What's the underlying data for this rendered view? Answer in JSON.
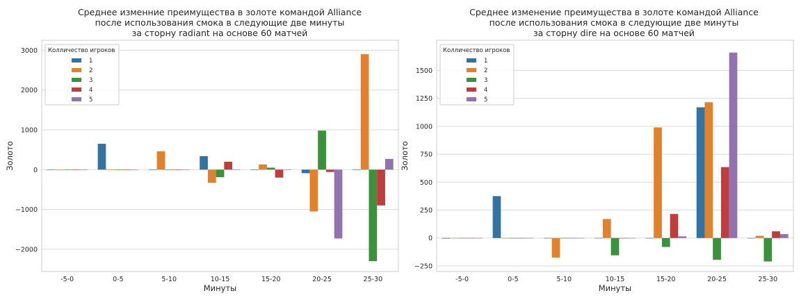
{
  "colors": {
    "series": [
      "#3274a1",
      "#e1812c",
      "#3a923a",
      "#c03d3e",
      "#9372b2"
    ],
    "grid": "#d9d9d9",
    "text": "#262626",
    "frame": "#cccccc"
  },
  "chart_data": [
    {
      "type": "bar",
      "title_lines": [
        "Среднее изменние преимущества в золоте командой Alliance",
        "после использования смока в следующие две минуты",
        "за сторну radiant на основе 60 матчей"
      ],
      "xlabel": "Минуты",
      "ylabel": "Золото",
      "categories": [
        "-5-0",
        "0-5",
        "5-10",
        "10-15",
        "15-20",
        "20-25",
        "25-30"
      ],
      "ylim": [
        -2560,
        3250
      ],
      "yticks": [
        -2000,
        -1000,
        0,
        1000,
        2000,
        3000
      ],
      "ytick_labels": [
        "−2000",
        "−1000",
        "0",
        "1000",
        "2000",
        "3000"
      ],
      "legend": {
        "title": "Колличество игроков",
        "location": "top-left"
      },
      "series": [
        {
          "name": "1",
          "values": [
            -5,
            650,
            0,
            340,
            0,
            -90,
            0
          ]
        },
        {
          "name": "2",
          "values": [
            0,
            0,
            460,
            -330,
            130,
            -1050,
            2900
          ]
        },
        {
          "name": "3",
          "values": [
            0,
            0,
            0,
            -190,
            50,
            980,
            -2300
          ]
        },
        {
          "name": "4",
          "values": [
            0,
            0,
            0,
            200,
            -200,
            -60,
            -900
          ]
        },
        {
          "name": "5",
          "values": [
            0,
            0,
            0,
            0,
            0,
            -1730,
            270
          ]
        }
      ]
    },
    {
      "type": "bar",
      "title_lines": [
        "Среднее изменение преимущества в золоте командой Alliance",
        "после использования смока в следующие две минуты",
        "за сторну dire на основе 60 матчей"
      ],
      "xlabel": "Минуты",
      "ylabel": "Золото",
      "categories": [
        "-5-0",
        "0-5",
        "5-10",
        "10-15",
        "15-20",
        "20-25",
        "25-30"
      ],
      "ylim": [
        -300,
        1770
      ],
      "yticks": [
        -250,
        0,
        250,
        500,
        750,
        1000,
        1250,
        1500
      ],
      "ytick_labels": [
        "−250",
        "0",
        "250",
        "500",
        "750",
        "1000",
        "1250",
        "1500"
      ],
      "legend": {
        "title": "Колличество игроков",
        "location": "top-left"
      },
      "series": [
        {
          "name": "1",
          "values": [
            -5,
            375,
            0,
            0,
            0,
            1170,
            0
          ]
        },
        {
          "name": "2",
          "values": [
            0,
            0,
            -175,
            170,
            990,
            1215,
            20
          ]
        },
        {
          "name": "3",
          "values": [
            0,
            0,
            0,
            -155,
            -80,
            -195,
            -210
          ]
        },
        {
          "name": "4",
          "values": [
            0,
            0,
            0,
            0,
            215,
            635,
            60
          ]
        },
        {
          "name": "5",
          "values": [
            0,
            0,
            0,
            0,
            15,
            1660,
            35
          ]
        }
      ]
    }
  ]
}
